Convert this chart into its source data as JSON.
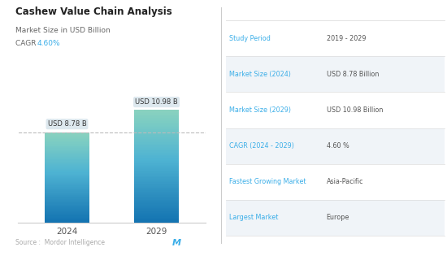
{
  "title": "Cashew Value Chain Analysis",
  "subtitle1": "Market Size in USD Billion",
  "subtitle2_prefix": "CAGR ",
  "cagr_value": "4.60%",
  "bar_labels": [
    "2024",
    "2029"
  ],
  "bar_values": [
    8.78,
    10.98
  ],
  "bar_annotations": [
    "USD 8.78 B",
    "USD 10.98 B"
  ],
  "bar_color_light": "#a8dde0",
  "bar_color_dark": "#4ba8b8",
  "bar_width": 0.5,
  "ylim": [
    0,
    13
  ],
  "dashed_line_y": 8.78,
  "source_text": "Source :  Mordor Intelligence",
  "table_labels": [
    "Study Period",
    "Market Size (2024)",
    "Market Size (2029)",
    "CAGR (2024 - 2029)",
    "Fastest Growing Market",
    "Largest Market"
  ],
  "table_values": [
    "2019 - 2029",
    "USD 8.78 Billion",
    "USD 10.98 Billion",
    "4.60 %",
    "Asia-Pacific",
    "Europe"
  ],
  "table_label_color": "#3baee8",
  "table_value_color": "#555555",
  "bg_color": "#ffffff",
  "divider_color": "#dddddd",
  "annotation_bg_color": "#dde8ee",
  "title_color": "#222222",
  "subtitle_color": "#666666",
  "cagr_color": "#3baee8",
  "source_color": "#aaaaaa",
  "alt_row_color": "#f0f4f8"
}
